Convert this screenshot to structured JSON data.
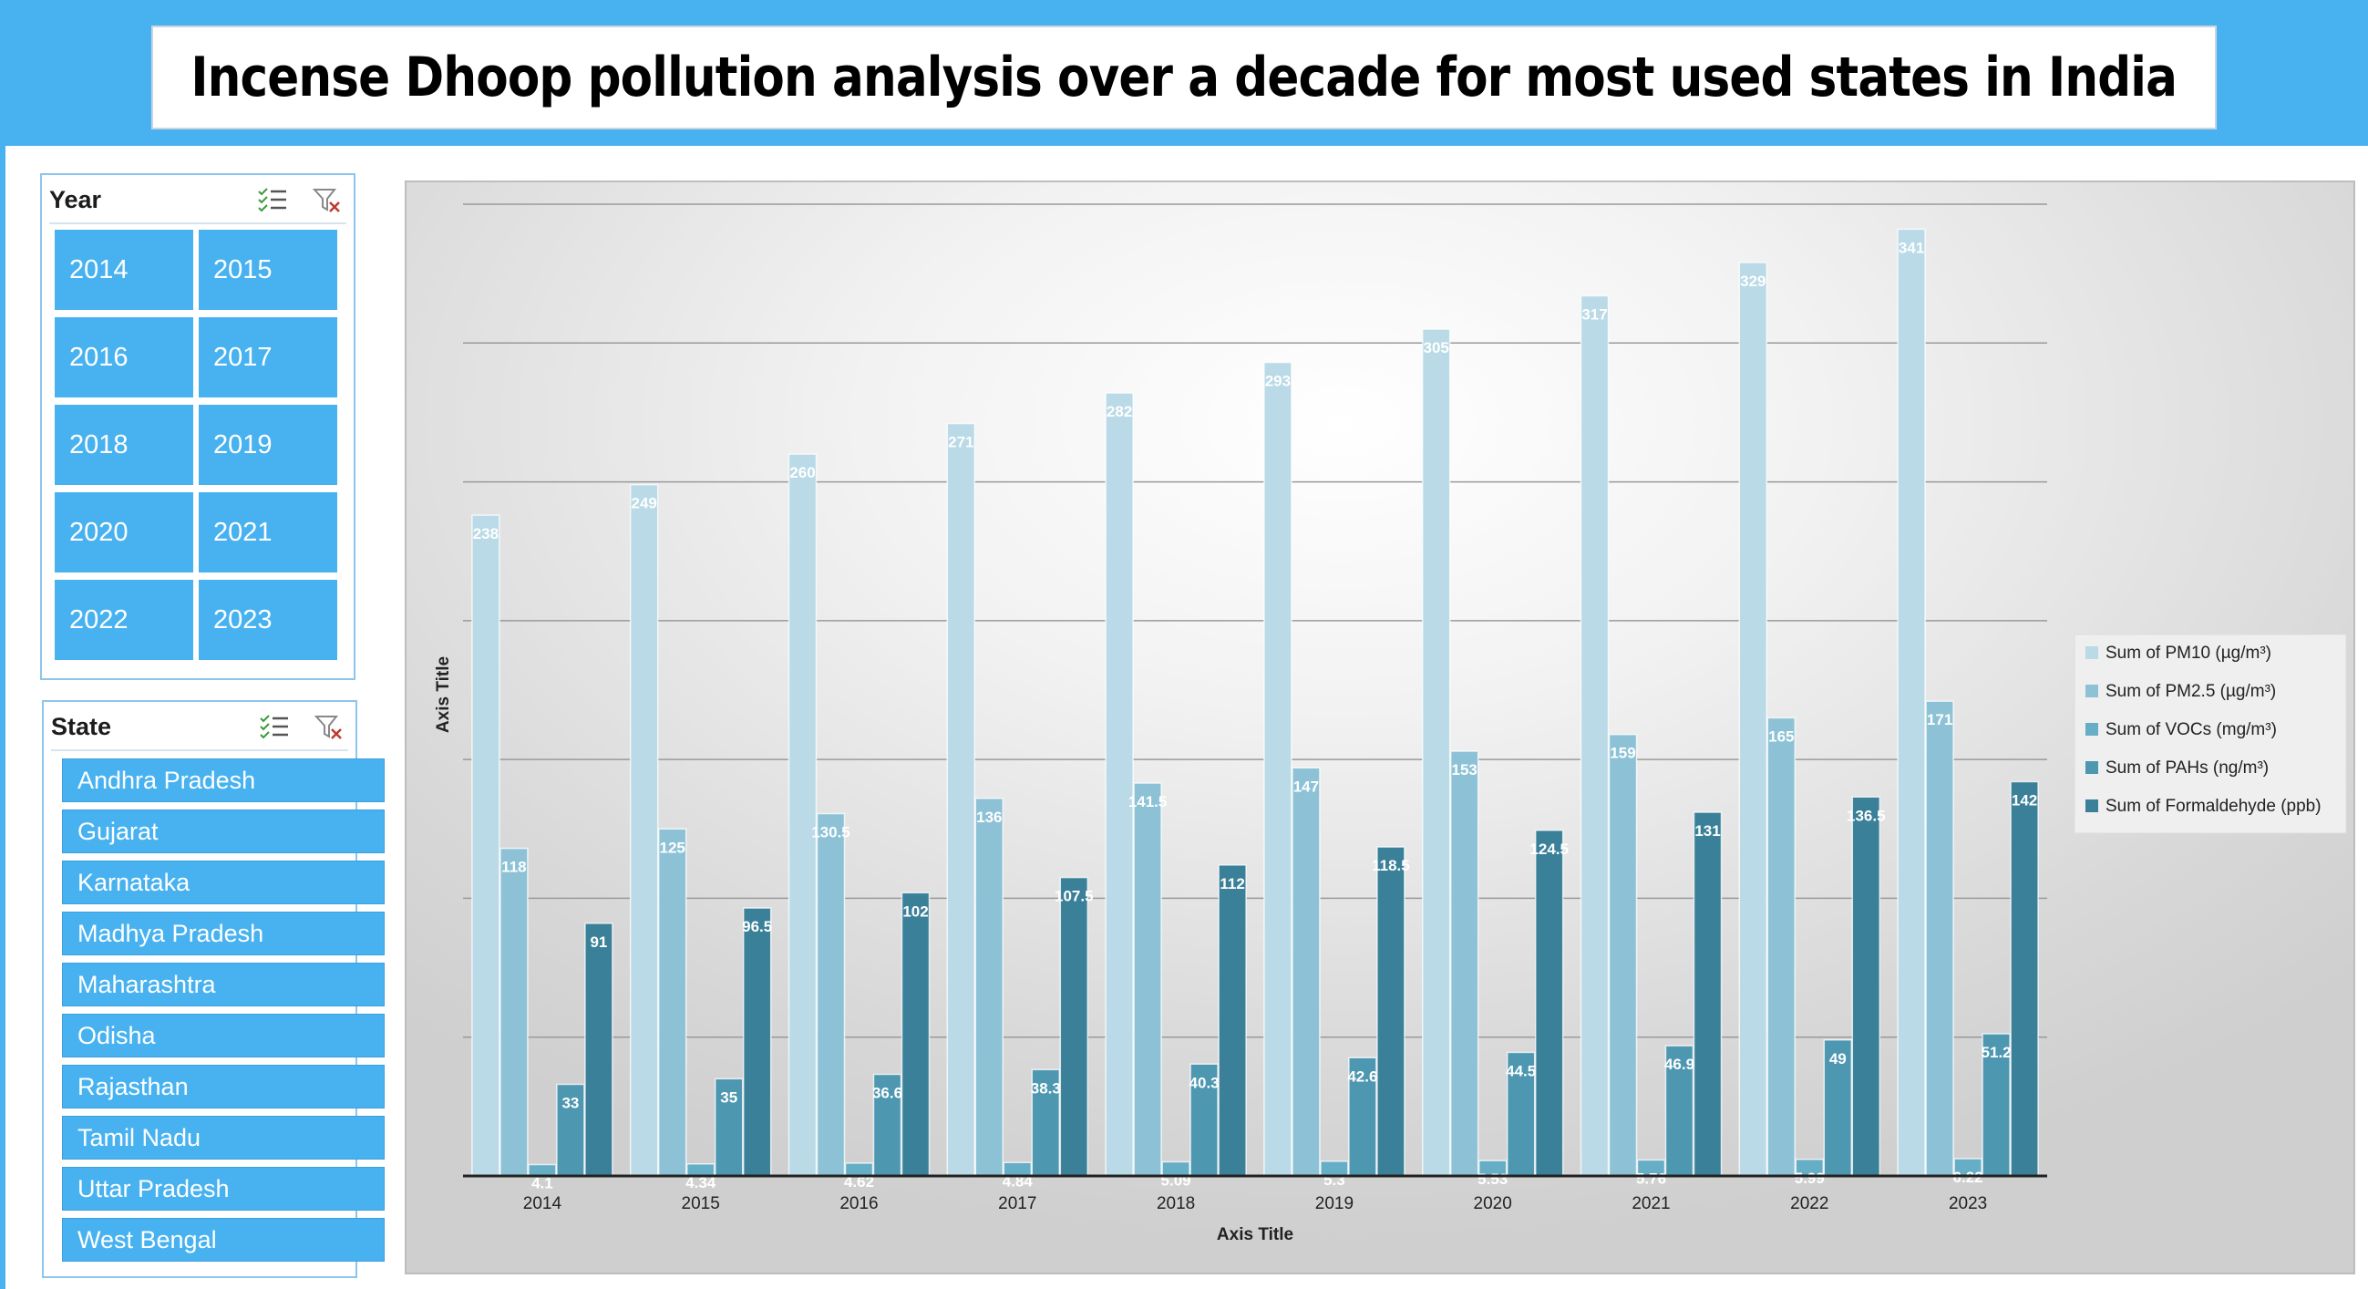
{
  "title": "Incense Dhoop pollution analysis over a decade for most used states in India",
  "colors": {
    "accent": "#48b2f0"
  },
  "year_slicer": {
    "title": "Year",
    "icons": [
      "multi-select-icon",
      "clear-filter-icon"
    ],
    "items": [
      "2014",
      "2015",
      "2016",
      "2017",
      "2018",
      "2019",
      "2020",
      "2021",
      "2022",
      "2023"
    ]
  },
  "state_slicer": {
    "title": "State",
    "icons": [
      "multi-select-icon",
      "clear-filter-icon"
    ],
    "items": [
      "Andhra Pradesh",
      "Gujarat",
      "Karnataka",
      "Madhya Pradesh",
      "Maharashtra",
      "Odisha",
      "Rajasthan",
      "Tamil Nadu",
      "Uttar Pradesh",
      "West Bengal"
    ]
  },
  "chart_data": {
    "type": "bar",
    "title": "",
    "xlabel": "Axis Title",
    "ylabel": "Axis Title",
    "ylim": [
      0,
      350
    ],
    "grid": true,
    "legend_position": "right",
    "categories": [
      "2014",
      "2015",
      "2016",
      "2017",
      "2018",
      "2019",
      "2020",
      "2021",
      "2022",
      "2023"
    ],
    "series": [
      {
        "name": "Sum of PM10 (µg/m³)",
        "color": "#b9dae6",
        "values": [
          238,
          249,
          260,
          271,
          282,
          293,
          305,
          317,
          329,
          341
        ],
        "labels": [
          "238",
          "249",
          "260",
          "271",
          "282",
          "293",
          "305",
          "317",
          "329",
          "341"
        ]
      },
      {
        "name": "Sum of PM2.5 (µg/m³)",
        "color": "#8dc2d6",
        "values": [
          118,
          125,
          130.5,
          136,
          141.5,
          147,
          153,
          159,
          165,
          171
        ],
        "labels": [
          "118",
          "125",
          "130.5",
          "136",
          "141.5",
          "147",
          "153",
          "159",
          "165",
          "171"
        ]
      },
      {
        "name": "Sum of VOCs (mg/m³)",
        "color": "#66adc6",
        "values": [
          4.1,
          4.34,
          4.62,
          4.84,
          5.09,
          5.3,
          5.53,
          5.76,
          5.99,
          6.22
        ],
        "labels": [
          "4.1",
          "4.34",
          "4.62",
          "4.84",
          "5.09",
          "5.3",
          "5.53",
          "5.76",
          "5.99",
          "6.22"
        ]
      },
      {
        "name": "Sum of PAHs (ng/m³)",
        "color": "#4d97b1",
        "values": [
          33,
          35,
          36.6,
          38.3,
          40.3,
          42.6,
          44.5,
          46.9,
          49,
          51.2
        ],
        "labels": [
          "33",
          "35",
          "36.6",
          "38.3",
          "40.3",
          "42.6",
          "44.5",
          "46.9",
          "49",
          "51.2"
        ]
      },
      {
        "name": "Sum of Formaldehyde (ppb)",
        "color": "#3b8099",
        "values": [
          91,
          96.5,
          102,
          107.5,
          112,
          118.5,
          124.5,
          131,
          136.5,
          142
        ],
        "labels": [
          "91",
          "96.5",
          "102",
          "107.5",
          "112",
          "118.5",
          "124.5",
          "131",
          "136.5",
          "142"
        ]
      }
    ]
  }
}
